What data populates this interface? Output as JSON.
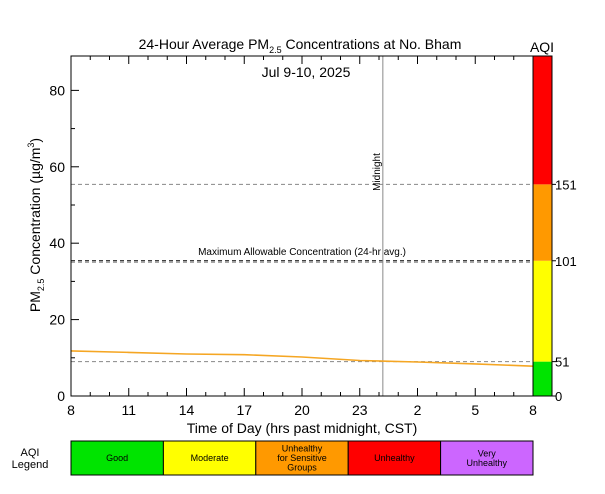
{
  "chart_data": {
    "type": "line",
    "title": {
      "prefix": "24-Hour Average PM",
      "subscript": "2.5",
      "suffix": " Concentrations at No. Bham"
    },
    "subtitle": "Jul 9-10, 2025",
    "xlabel": "Time of Day (hrs past midnight, CST)",
    "ylabel": {
      "prefix": "PM",
      "subscript": "2.5",
      "middle": " Concentration (µg/m",
      "superscript": "3",
      "suffix": ")"
    },
    "x_ticks": [
      "8",
      "11",
      "14",
      "17",
      "20",
      "23",
      "2",
      "5",
      "8"
    ],
    "xlim": [
      8,
      32
    ],
    "y_ticks": [
      0,
      20,
      40,
      60,
      80
    ],
    "ylim": [
      0,
      89
    ],
    "series": [
      {
        "color": "#f5a623",
        "x": [
          8,
          11,
          14,
          17,
          20,
          23,
          26,
          29,
          32
        ],
        "y": [
          11.8,
          11.4,
          11.0,
          10.8,
          10.2,
          9.3,
          8.9,
          8.4,
          7.8
        ]
      }
    ],
    "reference_lines": [
      {
        "y": 35.4,
        "label": "Maximum Allowable Concentration (24-hr avg.)",
        "color": "#000000"
      },
      {
        "y": 55.4,
        "label": "",
        "color": "#888888"
      },
      {
        "y": 35.0,
        "label": "",
        "color": "#888888"
      },
      {
        "y": 9.0,
        "label": "",
        "color": "#888888"
      }
    ],
    "midnight_line": {
      "x": 24.2,
      "label": "Midnight"
    },
    "aqi_bar": {
      "title": "AQI",
      "bands": [
        {
          "from": 0,
          "to": 9.0,
          "color": "#00e400"
        },
        {
          "from": 9.0,
          "to": 35.4,
          "color": "#ffff00"
        },
        {
          "from": 35.4,
          "to": 55.4,
          "color": "#ff9900"
        },
        {
          "from": 55.4,
          "to": 89,
          "color": "#ff0000"
        }
      ],
      "ticks": [
        {
          "y": 0,
          "label": "0"
        },
        {
          "y": 9.0,
          "label": "51"
        },
        {
          "y": 35.4,
          "label": "101"
        },
        {
          "y": 55.4,
          "label": "151"
        }
      ]
    },
    "grid": false
  },
  "legend": {
    "title_line1": "AQI",
    "title_line2": "Legend",
    "items": [
      {
        "lines": [
          "Good"
        ],
        "color": "#00e400"
      },
      {
        "lines": [
          "Moderate"
        ],
        "color": "#ffff00"
      },
      {
        "lines": [
          "Unhealthy",
          "for Sensitive",
          "Groups"
        ],
        "color": "#ff9900"
      },
      {
        "lines": [
          "Unhealthy"
        ],
        "color": "#ff0000"
      },
      {
        "lines": [
          "Very",
          "Unhealthy"
        ],
        "color": "#cc66ff"
      }
    ]
  }
}
